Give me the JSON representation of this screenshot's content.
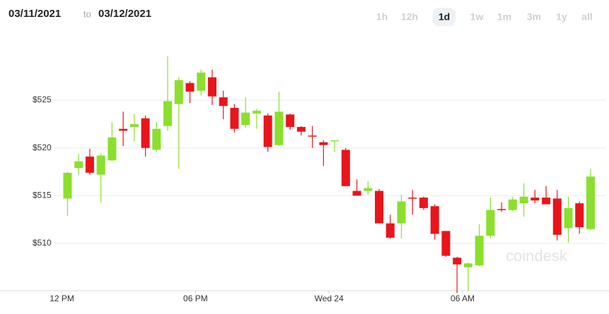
{
  "header": {
    "start_date": "03/11/2021",
    "separator": "to",
    "end_date": "03/12/2021",
    "ranges": [
      "1h",
      "12h",
      "1d",
      "1w",
      "1m",
      "3m",
      "1y",
      "all"
    ],
    "active_range": "1d"
  },
  "chart_data": {
    "type": "candlestick",
    "watermark": "coindesk",
    "x": [
      0.25,
      0.75,
      1.25,
      1.75,
      2.25,
      2.75,
      3.25,
      3.75,
      4.25,
      4.75,
      5.25,
      5.75,
      6.25,
      6.75,
      7.25,
      7.75,
      8.25,
      8.75,
      9.25,
      9.75,
      10.25,
      10.75,
      11.25,
      11.75,
      12.25,
      12.75,
      13.25,
      13.75,
      14.25,
      14.75,
      15.25,
      15.75,
      16.25,
      16.75,
      17.25,
      17.75,
      18.25,
      18.75,
      19.25,
      19.75,
      20.25,
      20.75,
      21.25,
      21.75,
      22.25,
      22.75,
      23.25,
      23.75
    ],
    "open": [
      514.7,
      517.9,
      519.1,
      517.2,
      518.7,
      522.0,
      522.2,
      523.1,
      519.8,
      522.3,
      524.6,
      526.8,
      526.0,
      527.4,
      525.3,
      524.2,
      522.4,
      523.6,
      523.4,
      520.3,
      523.5,
      522.2,
      521.3,
      520.6,
      520.7,
      519.8,
      515.5,
      515.5,
      515.5,
      512.1,
      512.1,
      514.8,
      514.8,
      513.9,
      511.3,
      508.5,
      507.5,
      507.7,
      510.8,
      513.6,
      513.5,
      514.2,
      514.8,
      514.8,
      514.7,
      511.6,
      514.2,
      511.5
    ],
    "high": [
      517.5,
      519.4,
      519.9,
      519.4,
      522.7,
      523.8,
      523.6,
      523.4,
      522.7,
      529.6,
      527.4,
      527.0,
      528.2,
      528.2,
      526.0,
      524.6,
      525.3,
      524.1,
      523.6,
      525.9,
      523.6,
      522.3,
      522.3,
      520.8,
      520.8,
      520.0,
      516.7,
      516.5,
      515.7,
      513.0,
      515.1,
      515.6,
      514.9,
      514.1,
      511.3,
      508.6,
      508.0,
      512.0,
      514.8,
      514.3,
      514.9,
      516.3,
      515.6,
      516.0,
      515.6,
      514.9,
      514.4,
      517.8
    ],
    "low": [
      512.9,
      517.2,
      517.2,
      514.3,
      518.6,
      520.2,
      520.7,
      519.1,
      519.6,
      521.8,
      517.8,
      524.7,
      525.5,
      524.5,
      523.0,
      521.6,
      522.1,
      522.0,
      519.6,
      520.2,
      521.9,
      521.3,
      520.0,
      518.1,
      519.6,
      516.0,
      515.0,
      515.1,
      512.1,
      510.5,
      510.5,
      513.0,
      513.5,
      510.4,
      508.6,
      504.8,
      505.0,
      507.6,
      510.5,
      513.3,
      513.4,
      512.8,
      514.2,
      514.1,
      510.3,
      510.1,
      511.0,
      511.4
    ],
    "close": [
      517.4,
      518.6,
      517.4,
      519.2,
      521.1,
      521.8,
      522.5,
      520.0,
      522.0,
      524.9,
      527.1,
      525.9,
      527.9,
      525.4,
      524.4,
      522.0,
      523.7,
      523.9,
      520.1,
      523.8,
      522.2,
      521.7,
      521.2,
      520.3,
      520.8,
      516.0,
      515.0,
      515.8,
      512.1,
      510.6,
      514.4,
      514.7,
      513.7,
      511.0,
      508.7,
      507.8,
      507.9,
      510.8,
      513.5,
      513.5,
      514.6,
      514.9,
      514.5,
      514.1,
      510.9,
      513.7,
      511.7,
      517.0
    ],
    "up_color": "#8ae02c",
    "down_color": "#e8151b",
    "xlim": [
      -0.4,
      24.1
    ],
    "ylim": [
      505,
      530.5
    ],
    "xticks": [
      {
        "value": 0,
        "label": "12 PM"
      },
      {
        "value": 6,
        "label": "06 PM"
      },
      {
        "value": 12,
        "label": "Wed 24"
      },
      {
        "value": 18,
        "label": "06 AM"
      }
    ],
    "yticks": [
      {
        "value": 510,
        "label": "$510"
      },
      {
        "value": 515,
        "label": "$515"
      },
      {
        "value": 520,
        "label": "$520"
      },
      {
        "value": 525,
        "label": "$525"
      }
    ],
    "grid": true
  }
}
